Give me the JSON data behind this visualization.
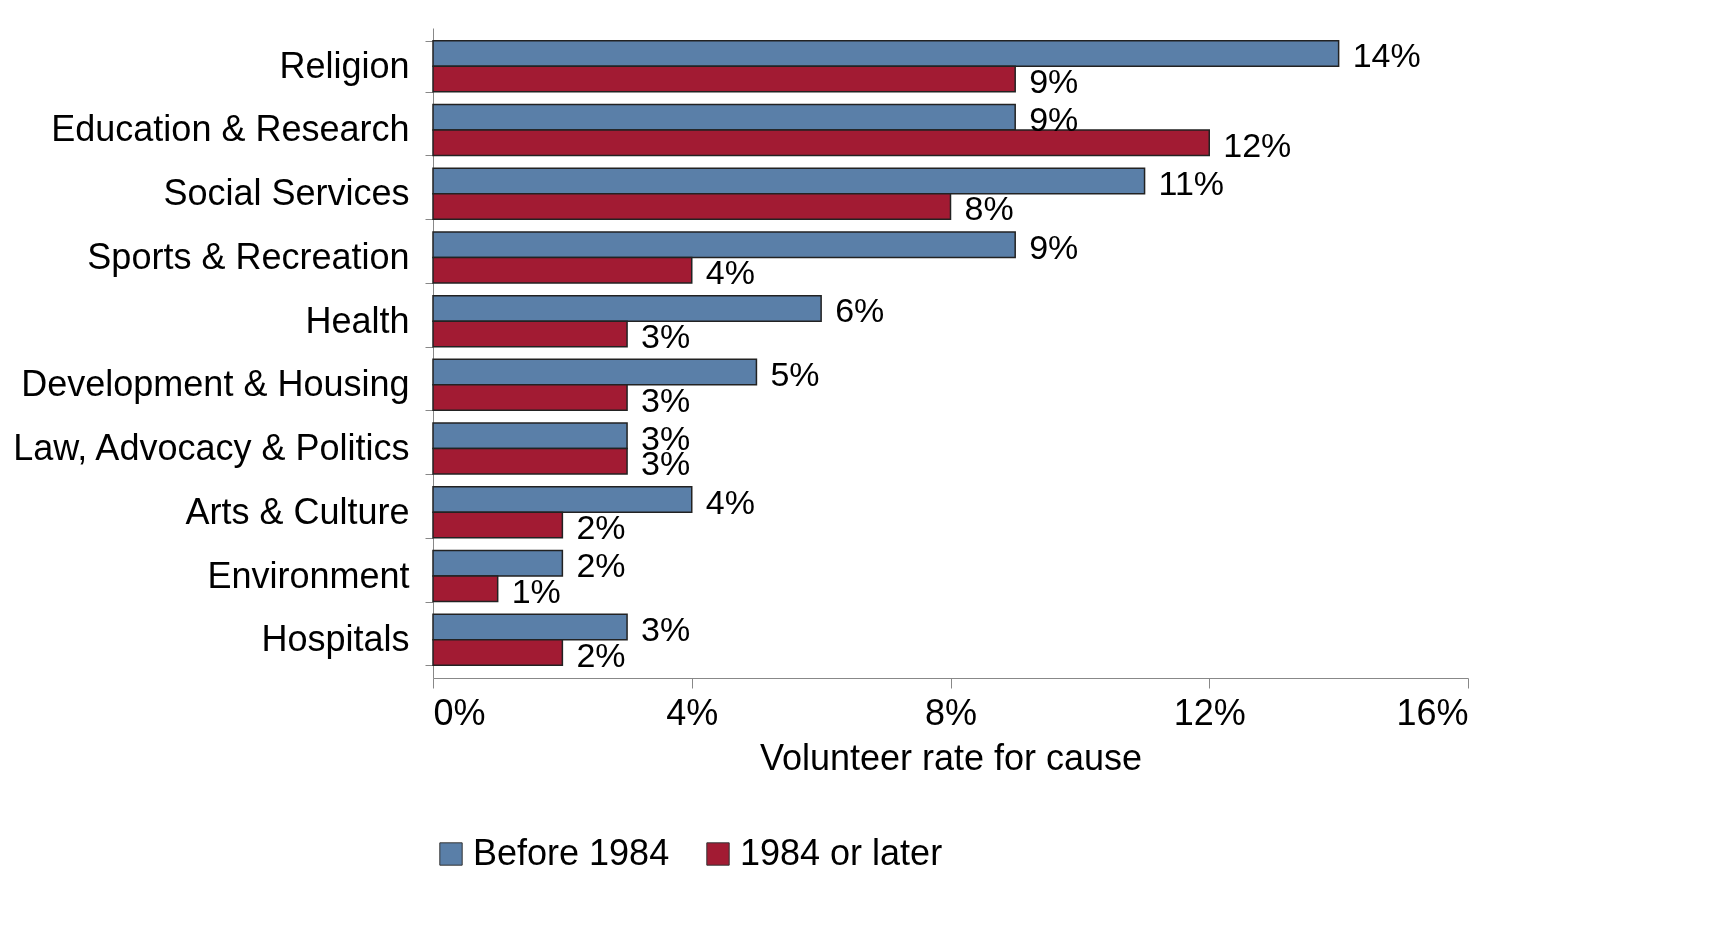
{
  "chart_data": {
    "type": "bar",
    "orientation": "horizontal",
    "xlabel": "Volunteer rate for cause",
    "categories": [
      "Religion",
      "Education & Research",
      "Social Services",
      "Sports & Recreation",
      "Health",
      "Development & Housing",
      "Law, Advocacy & Politics",
      "Arts & Culture",
      "Environment",
      "Hospitals"
    ],
    "series": [
      {
        "name": "Before 1984",
        "color": "#5a7fa8",
        "values": [
          14,
          9,
          11,
          9,
          6,
          5,
          3,
          4,
          2,
          3
        ],
        "value_labels": [
          "14%",
          "9%",
          "11%",
          "9%",
          "6%",
          "5%",
          "3%",
          "4%",
          "2%",
          "3%"
        ]
      },
      {
        "name": "1984 or later",
        "color": "#a21b33",
        "values": [
          9,
          12,
          8,
          4,
          3,
          3,
          3,
          2,
          1,
          2
        ],
        "value_labels": [
          "9%",
          "12%",
          "8%",
          "4%",
          "3%",
          "3%",
          "3%",
          "2%",
          "1%",
          "2%"
        ]
      }
    ],
    "xlim": [
      0,
      16
    ],
    "xticks": [
      {
        "value": 0,
        "label": "0%"
      },
      {
        "value": 4,
        "label": "4%"
      },
      {
        "value": 8,
        "label": "8%"
      },
      {
        "value": 12,
        "label": "12%"
      },
      {
        "value": 16,
        "label": "16%"
      }
    ],
    "grid": false,
    "legend": "bottom"
  }
}
